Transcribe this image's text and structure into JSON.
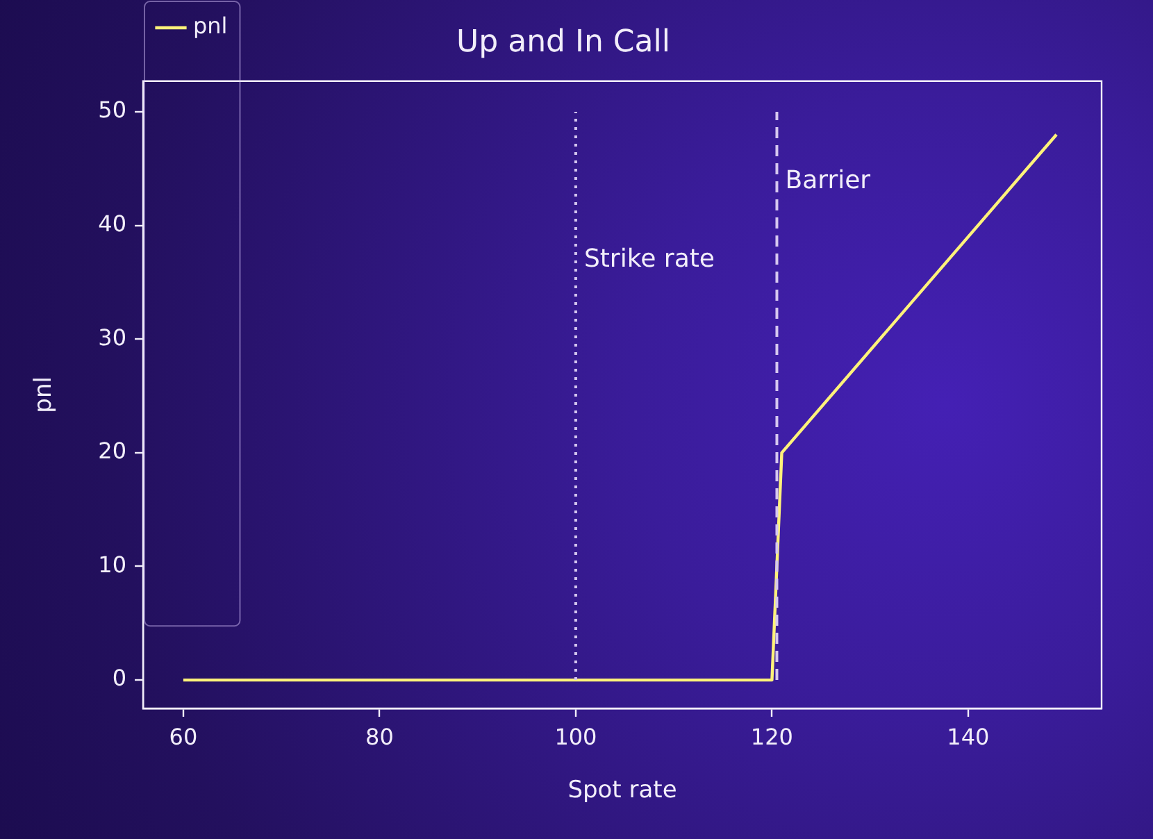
{
  "chart_data": {
    "type": "line",
    "title": "Up and In Call",
    "xlabel": "Spot rate",
    "ylabel": "pnl",
    "x": [
      60,
      120,
      121,
      149
    ],
    "series": [
      {
        "name": "pnl",
        "color": "#fff27a",
        "values": [
          0,
          0,
          20,
          48
        ]
      }
    ],
    "xlim": [
      55.9,
      153.6
    ],
    "xticks": [
      60,
      80,
      100,
      120,
      140
    ],
    "ylim": [
      -2.5,
      52.7
    ],
    "yticks": [
      0,
      10,
      20,
      30,
      40,
      50
    ],
    "ref_lines": [
      {
        "axis": "x",
        "value": 100,
        "label": "Strike rate",
        "line_style": "dotted",
        "color": "#d6c8f0"
      },
      {
        "axis": "x",
        "value": 120.5,
        "label": "Barrier",
        "line_style": "dashed",
        "color": "#d6c8f0"
      }
    ],
    "grid": false,
    "legend": "top left",
    "marker": "none",
    "line_style": "solid"
  }
}
